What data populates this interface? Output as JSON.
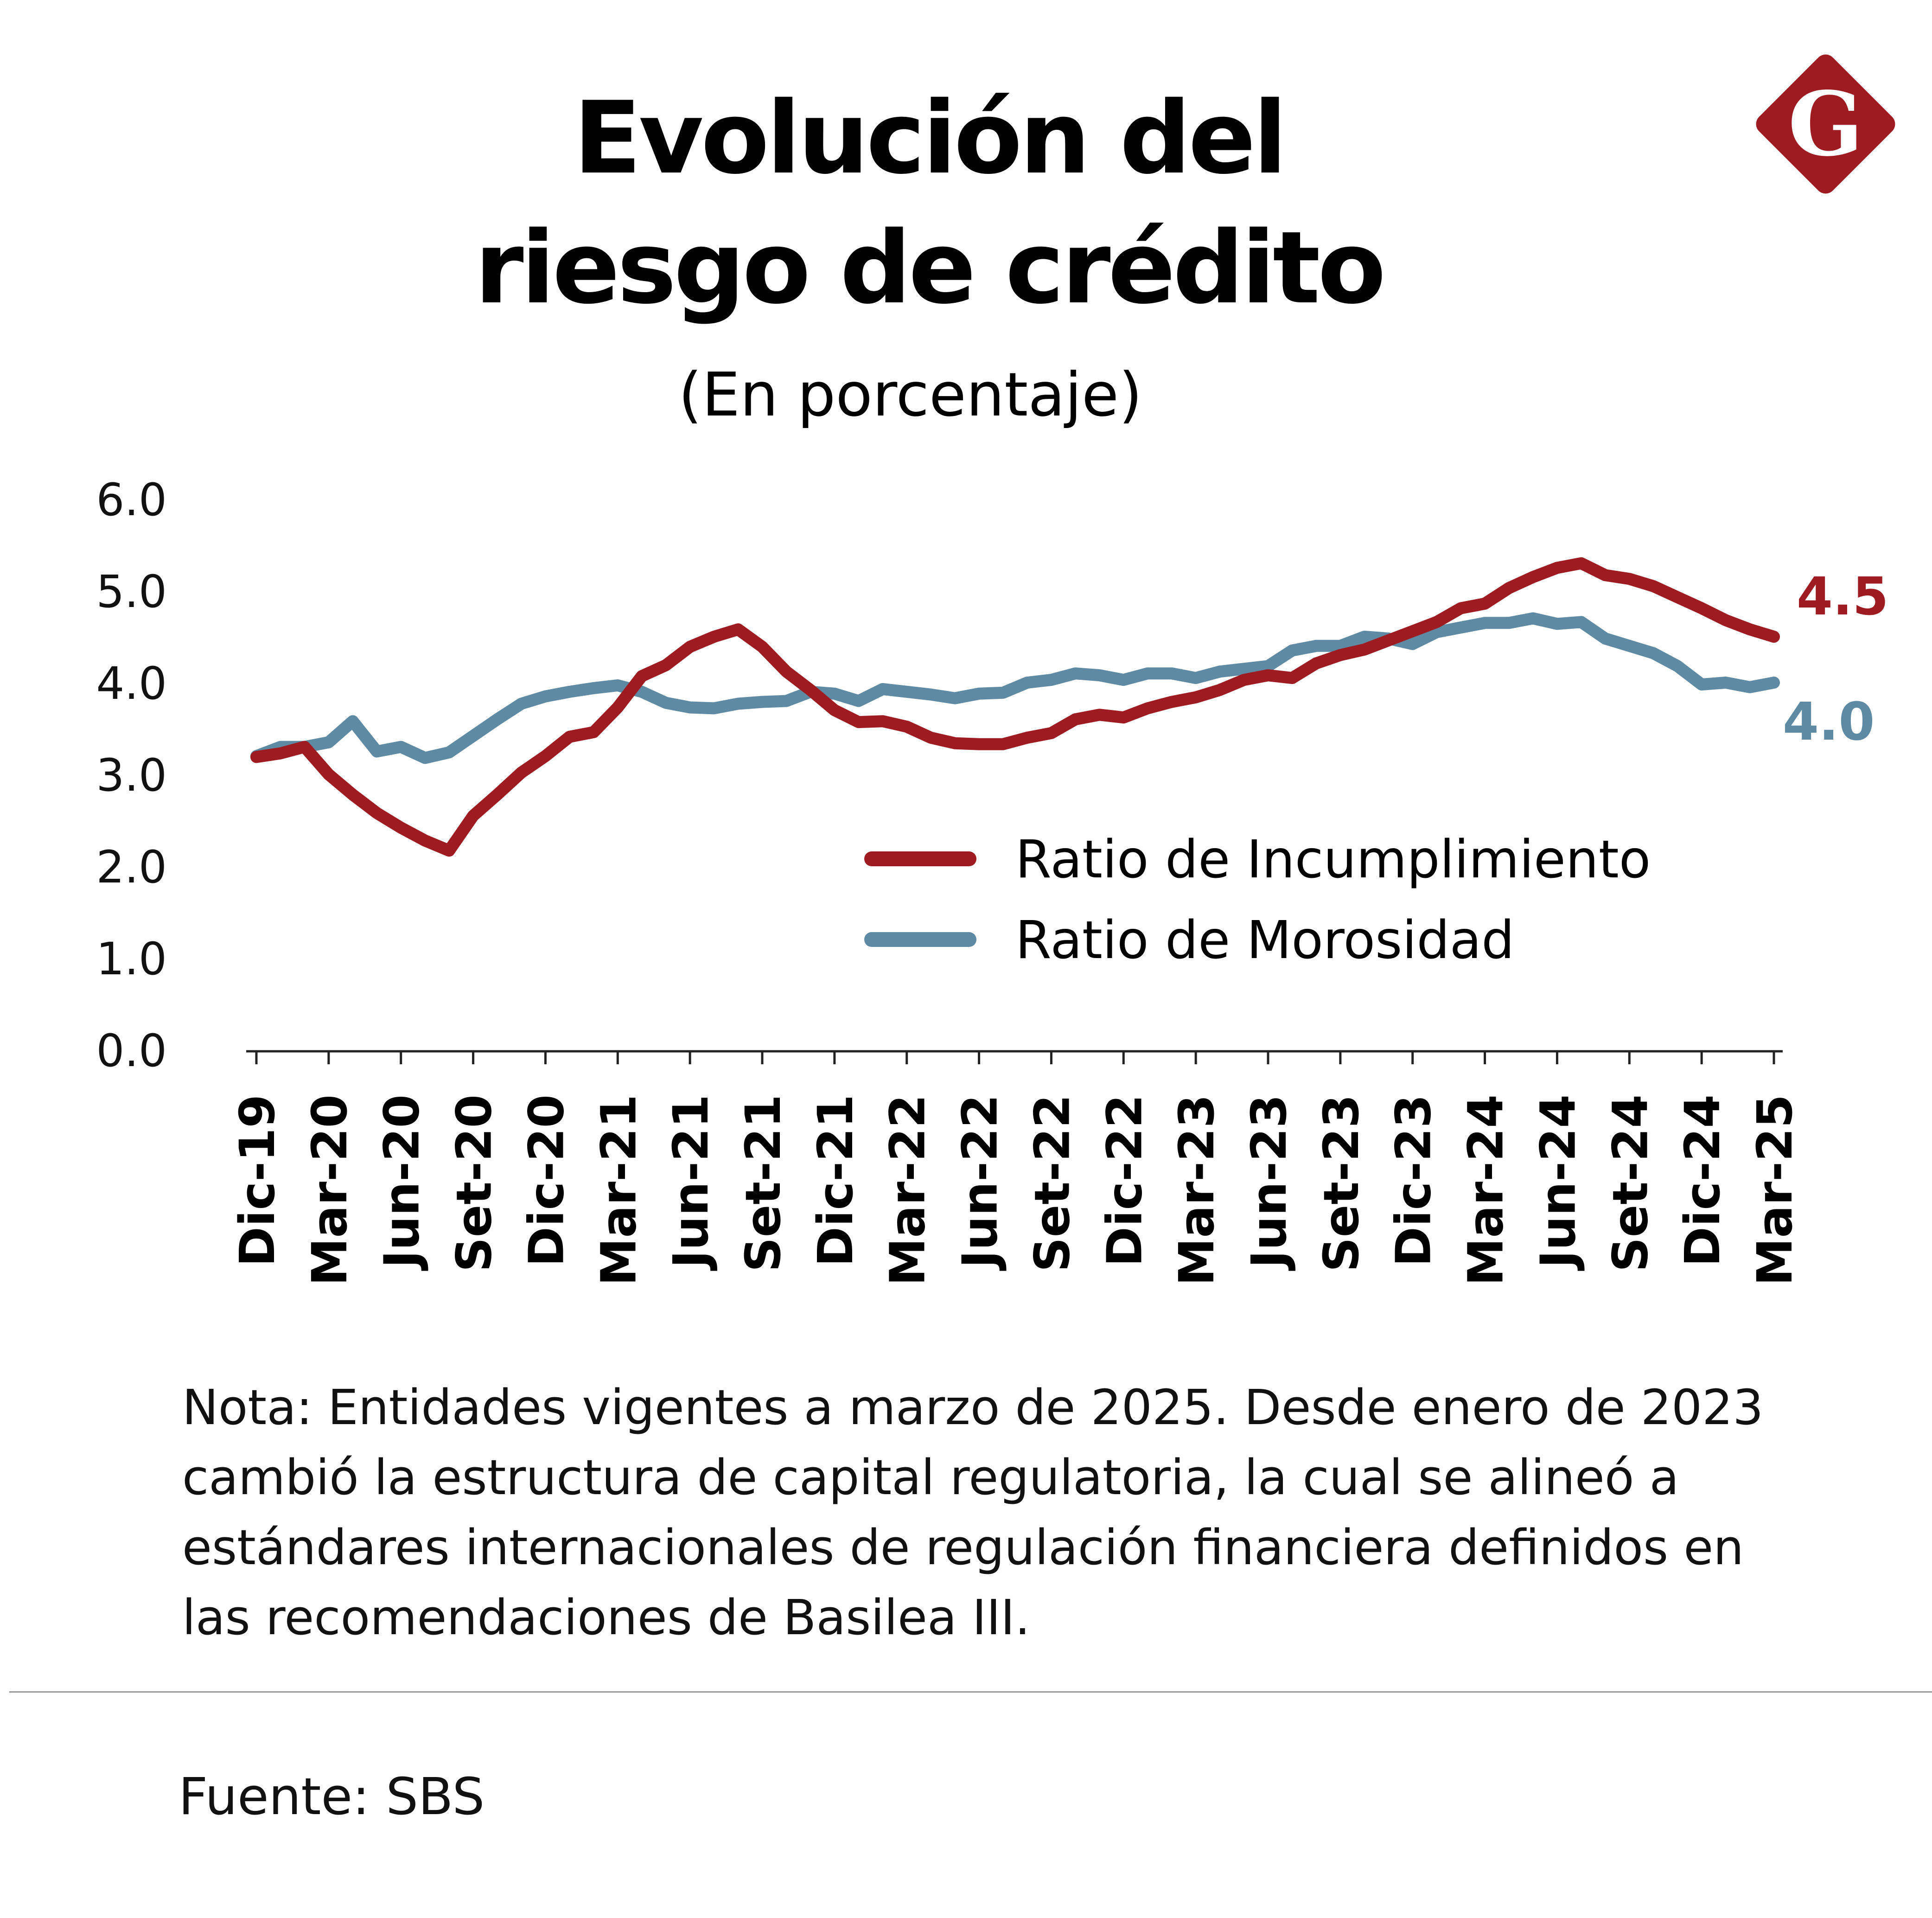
{
  "title_line1": "Evolución del",
  "title_line2": "riesgo de crédito",
  "subtitle": "(En porcentaje)",
  "logo": "G",
  "note": "Nota: Entidades vigentes a marzo de 2025. Desde enero de 2023 cambió la estructura de capital regulatoria, la cual se alineó a estándares internacionales de regulación financiera definidos en las recomendaciones de Basilea III.",
  "source": "Fuente: SBS",
  "chart_data": {
    "type": "line",
    "title": "Evolución del riesgo de crédito",
    "subtitle": "(En porcentaje)",
    "ylim": [
      0,
      6
    ],
    "yticks": [
      "0.0",
      "1.0",
      "2.0",
      "3.0",
      "4.0",
      "5.0",
      "6.0"
    ],
    "grid": false,
    "legend_placement": "center-right",
    "x_start": "Dic-19",
    "x_end": "Mar-25",
    "x_frequency": "monthly",
    "xtick_labels": [
      "Dic-19",
      "Mar-20",
      "Jun-20",
      "Set-20",
      "Dic-20",
      "Mar-21",
      "Jun-21",
      "Set-21",
      "Dic-21",
      "Mar-22",
      "Jun-22",
      "Set-22",
      "Dic-22",
      "Mar-23",
      "Jun-23",
      "Set-23",
      "Dic-23",
      "Mar-24",
      "Jun-24",
      "Set-24",
      "Dic-24",
      "Mar-25"
    ],
    "series": [
      {
        "name": "Ratio de Incumplimiento",
        "color": "#9e1b22",
        "end_label": "4.5",
        "values": [
          3.19,
          3.23,
          3.3,
          3.0,
          2.78,
          2.58,
          2.42,
          2.28,
          2.17,
          2.55,
          2.78,
          3.02,
          3.2,
          3.41,
          3.46,
          3.73,
          4.07,
          4.19,
          4.39,
          4.5,
          4.58,
          4.39,
          4.12,
          3.92,
          3.7,
          3.57,
          3.58,
          3.52,
          3.4,
          3.34,
          3.33,
          3.33,
          3.4,
          3.45,
          3.6,
          3.65,
          3.62,
          3.72,
          3.79,
          3.84,
          3.92,
          4.03,
          4.08,
          4.05,
          4.21,
          4.3,
          4.36,
          4.46,
          4.56,
          4.66,
          4.81,
          4.86,
          5.03,
          5.15,
          5.25,
          5.3,
          5.17,
          5.13,
          5.05,
          4.93,
          4.81,
          4.68,
          4.58,
          4.5
        ]
      },
      {
        "name": "Ratio de Morosidad",
        "color": "#5e8aa3",
        "end_label": "4.0",
        "values": [
          3.2,
          3.3,
          3.3,
          3.35,
          3.58,
          3.25,
          3.3,
          3.18,
          3.24,
          3.42,
          3.6,
          3.77,
          3.85,
          3.9,
          3.94,
          3.97,
          3.9,
          3.78,
          3.73,
          3.72,
          3.77,
          3.79,
          3.8,
          3.9,
          3.88,
          3.8,
          3.93,
          3.9,
          3.87,
          3.83,
          3.88,
          3.89,
          4.0,
          4.03,
          4.1,
          4.08,
          4.03,
          4.1,
          4.1,
          4.05,
          4.12,
          4.15,
          4.18,
          4.35,
          4.4,
          4.4,
          4.5,
          4.48,
          4.42,
          4.55,
          4.6,
          4.65,
          4.65,
          4.7,
          4.64,
          4.66,
          4.48,
          4.4,
          4.32,
          4.18,
          3.98,
          4.0,
          3.95,
          4.0
        ]
      }
    ]
  }
}
